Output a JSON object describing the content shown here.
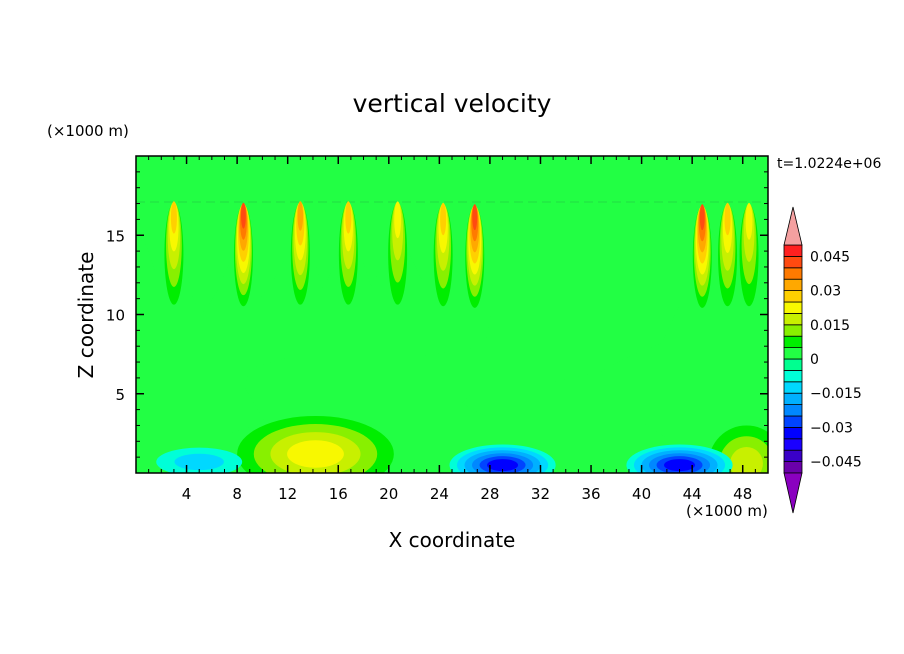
{
  "chart_data": {
    "type": "heatmap",
    "title": "vertical velocity",
    "xlabel": "X coordinate",
    "ylabel": "Z coordinate",
    "x_unit": "(×1000 m)",
    "y_unit": "(×1000 m)",
    "time_label": "t=1.0224e+06",
    "xlim": [
      0,
      50
    ],
    "ylim": [
      0,
      20
    ],
    "x_ticks": [
      4,
      8,
      12,
      16,
      20,
      24,
      28,
      32,
      36,
      40,
      44,
      48
    ],
    "y_ticks": [
      5,
      10,
      15
    ],
    "colorbar": {
      "min": -0.05,
      "max": 0.05,
      "step": 0.005,
      "tick_values": [
        0.045,
        0.03,
        0.015,
        0,
        -0.015,
        -0.03,
        -0.045
      ],
      "tick_labels": [
        "0.045",
        "0.03",
        "0.015",
        "0",
        "−0.015",
        "−0.03",
        "−0.045"
      ],
      "extend": "both",
      "colors": [
        "#6a00aa",
        "#3a00c8",
        "#1a00ff",
        "#0000ff",
        "#0044ff",
        "#0088ff",
        "#00b0ff",
        "#00d8ff",
        "#00ffd8",
        "#00ff90",
        "#22ff44",
        "#00ee00",
        "#88f000",
        "#c8f000",
        "#f8f800",
        "#ffd000",
        "#ffa800",
        "#ff7a00",
        "#ff4a10",
        "#ff2020"
      ],
      "over_color": "#f4a0a0",
      "under_color": "#8a00c0"
    },
    "background_level": 0.001,
    "features": [
      {
        "kind": "updraft",
        "x": 3.0,
        "z": 16.7,
        "peak": 0.026
      },
      {
        "kind": "updraft",
        "x": 8.5,
        "z": 16.6,
        "peak": 0.041
      },
      {
        "kind": "updraft",
        "x": 13.0,
        "z": 16.7,
        "peak": 0.031
      },
      {
        "kind": "updraft",
        "x": 16.8,
        "z": 16.7,
        "peak": 0.025
      },
      {
        "kind": "updraft",
        "x": 20.7,
        "z": 16.7,
        "peak": 0.024
      },
      {
        "kind": "updraft",
        "x": 24.3,
        "z": 16.6,
        "peak": 0.027
      },
      {
        "kind": "updraft",
        "x": 26.8,
        "z": 16.5,
        "peak": 0.042
      },
      {
        "kind": "updraft",
        "x": 44.8,
        "z": 16.5,
        "peak": 0.041
      },
      {
        "kind": "updraft",
        "x": 46.8,
        "z": 16.6,
        "peak": 0.026
      },
      {
        "kind": "updraft",
        "x": 48.5,
        "z": 16.6,
        "peak": 0.023
      },
      {
        "kind": "updraft",
        "x": 14.2,
        "z": 1.2,
        "peak": 0.021
      },
      {
        "kind": "updraft",
        "x": 48.3,
        "z": 0.6,
        "peak": 0.016
      },
      {
        "kind": "downdraft",
        "x": 5.0,
        "z": 0.7,
        "peak": -0.012
      },
      {
        "kind": "downdraft",
        "x": 29.0,
        "z": 0.5,
        "peak": -0.03
      },
      {
        "kind": "downdraft",
        "x": 43.0,
        "z": 0.5,
        "peak": -0.03
      }
    ]
  }
}
